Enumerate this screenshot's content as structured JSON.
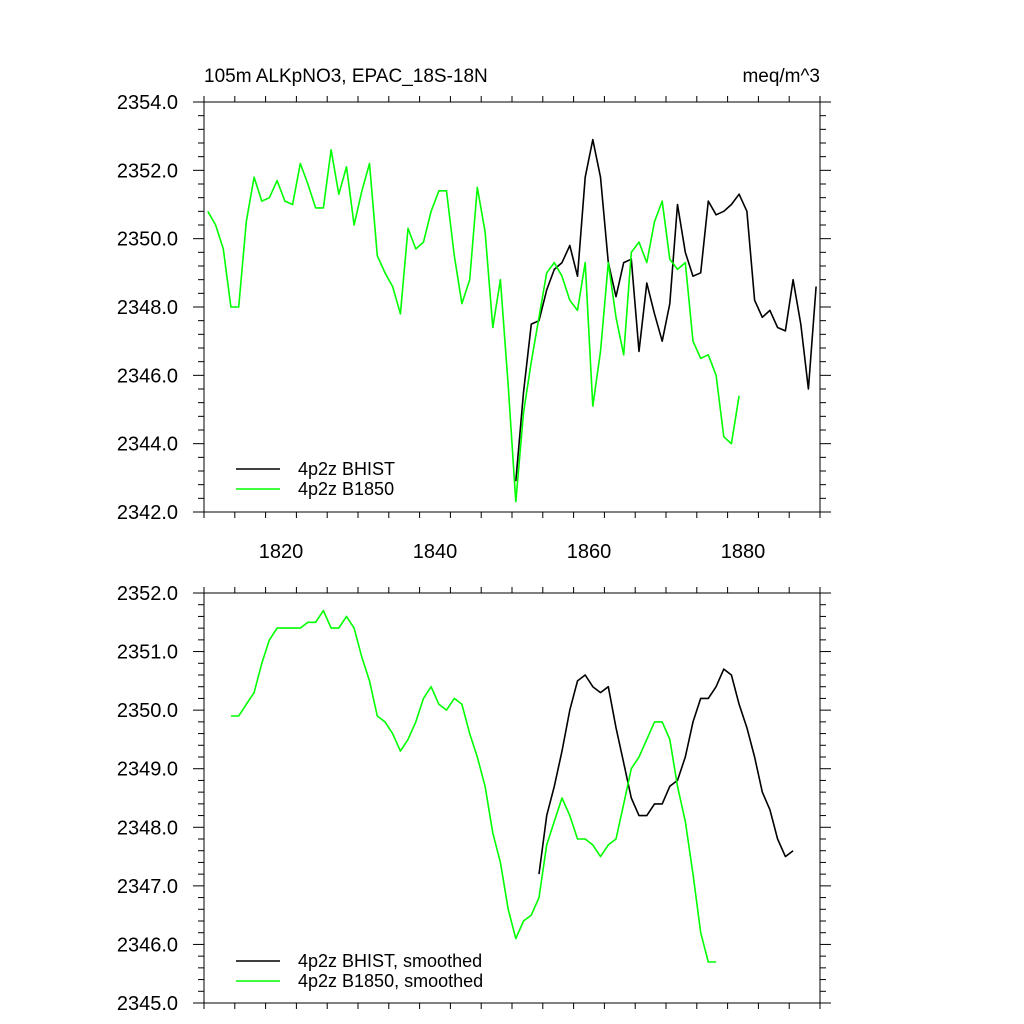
{
  "chart_data": [
    {
      "type": "line",
      "title": "105m ALKpNO3, EPAC_18S-18N",
      "units": "meq/m^3",
      "xlabel": "",
      "ylabel": "",
      "xlim": [
        1810,
        1890
      ],
      "ylim": [
        2342.0,
        2354.0
      ],
      "xticks": [
        1820,
        1840,
        1860,
        1880
      ],
      "xtick_labels": [
        "1820",
        "1840",
        "1860",
        "1880"
      ],
      "yticks": [
        2342,
        2344,
        2346,
        2348,
        2350,
        2352,
        2354
      ],
      "ytick_labels": [
        "2342.0",
        "2344.0",
        "2346.0",
        "2348.0",
        "2350.0",
        "2352.0",
        "2354.0"
      ],
      "grid": false,
      "legend_position": "bottom-left",
      "series": [
        {
          "name": "4p2z BHIST",
          "color": "#000000",
          "x": [
            1850.5,
            1851.5,
            1852.5,
            1853.5,
            1854.5,
            1855.5,
            1856.5,
            1857.5,
            1858.5,
            1859.5,
            1860.5,
            1861.5,
            1862.5,
            1863.5,
            1864.5,
            1865.5,
            1866.5,
            1867.5,
            1868.5,
            1869.5,
            1870.5,
            1871.5,
            1872.5,
            1873.5,
            1874.5,
            1875.5,
            1876.5,
            1877.5,
            1878.5,
            1879.5,
            1880.5,
            1881.5,
            1882.5,
            1883.5,
            1884.5,
            1885.5,
            1886.5,
            1887.5,
            1888.5,
            1889.5
          ],
          "values": [
            2342.9,
            2345.5,
            2347.5,
            2347.6,
            2348.5,
            2349.1,
            2349.3,
            2349.8,
            2348.9,
            2351.8,
            2352.9,
            2351.8,
            2349.3,
            2348.3,
            2349.3,
            2349.4,
            2346.7,
            2348.7,
            2347.8,
            2347.0,
            2348.1,
            2351.0,
            2349.6,
            2348.9,
            2349.0,
            2351.1,
            2350.7,
            2350.8,
            2351.0,
            2351.3,
            2350.8,
            2348.2,
            2347.7,
            2347.9,
            2347.4,
            2347.3,
            2348.8,
            2347.5,
            2345.6,
            2348.6
          ]
        },
        {
          "name": "4p2z B1850",
          "color": "#00ff00",
          "x": [
            1810.5,
            1811.5,
            1812.5,
            1813.5,
            1814.5,
            1815.5,
            1816.5,
            1817.5,
            1818.5,
            1819.5,
            1820.5,
            1821.5,
            1822.5,
            1823.5,
            1824.5,
            1825.5,
            1826.5,
            1827.5,
            1828.5,
            1829.5,
            1830.5,
            1831.5,
            1832.5,
            1833.5,
            1834.5,
            1835.5,
            1836.5,
            1837.5,
            1838.5,
            1839.5,
            1840.5,
            1841.5,
            1842.5,
            1843.5,
            1844.5,
            1845.5,
            1846.5,
            1847.5,
            1848.5,
            1849.5,
            1850.5,
            1851.5,
            1852.5,
            1853.5,
            1854.5,
            1855.5,
            1856.5,
            1857.5,
            1858.5,
            1859.5,
            1860.5,
            1861.5,
            1862.5,
            1863.5,
            1864.5,
            1865.5,
            1866.5,
            1867.5,
            1868.5,
            1869.5,
            1870.5,
            1871.5,
            1872.5,
            1873.5,
            1874.5,
            1875.5,
            1876.5,
            1877.5,
            1878.5,
            1879.5
          ],
          "values": [
            2350.8,
            2350.4,
            2349.7,
            2348.0,
            2348.0,
            2350.5,
            2351.8,
            2351.1,
            2351.2,
            2351.7,
            2351.1,
            2351.0,
            2352.2,
            2351.6,
            2350.9,
            2350.9,
            2352.6,
            2351.3,
            2352.1,
            2350.4,
            2351.4,
            2352.2,
            2349.5,
            2349.0,
            2348.6,
            2347.8,
            2350.3,
            2349.7,
            2349.9,
            2350.8,
            2351.4,
            2351.4,
            2349.5,
            2348.1,
            2348.8,
            2351.5,
            2350.2,
            2347.4,
            2348.8,
            2345.7,
            2342.3,
            2344.9,
            2346.4,
            2347.7,
            2349.0,
            2349.3,
            2348.9,
            2348.2,
            2347.9,
            2349.3,
            2345.1,
            2346.7,
            2349.3,
            2347.7,
            2346.6,
            2349.6,
            2349.9,
            2349.3,
            2350.5,
            2351.1,
            2349.4,
            2349.1,
            2349.3,
            2347.0,
            2346.5,
            2346.6,
            2346.0,
            2344.2,
            2344.0,
            2345.4
          ]
        }
      ]
    },
    {
      "type": "line",
      "title": "",
      "xlabel": "",
      "ylabel": "",
      "xlim": [
        1810,
        1890
      ],
      "ylim": [
        2345.0,
        2352.0
      ],
      "xticks": [
        1820,
        1840,
        1860,
        1880
      ],
      "yticks": [
        2345,
        2346,
        2347,
        2348,
        2349,
        2350,
        2351,
        2352
      ],
      "ytick_labels": [
        "2345.0",
        "2346.0",
        "2347.0",
        "2348.0",
        "2349.0",
        "2350.0",
        "2351.0",
        "2352.0"
      ],
      "grid": false,
      "legend_position": "bottom-left",
      "series": [
        {
          "name": "4p2z BHIST, smoothed",
          "color": "#000000",
          "x": [
            1853.5,
            1854.5,
            1855.5,
            1856.5,
            1857.5,
            1858.5,
            1859.5,
            1860.5,
            1861.5,
            1862.5,
            1863.5,
            1864.5,
            1865.5,
            1866.5,
            1867.5,
            1868.5,
            1869.5,
            1870.5,
            1871.5,
            1872.5,
            1873.5,
            1874.5,
            1875.5,
            1876.5,
            1877.5,
            1878.5,
            1879.5,
            1880.5,
            1881.5,
            1882.5,
            1883.5,
            1884.5,
            1885.5,
            1886.5
          ],
          "values": [
            2347.2,
            2348.2,
            2348.7,
            2349.3,
            2350.0,
            2350.5,
            2350.6,
            2350.4,
            2350.3,
            2350.4,
            2349.7,
            2349.1,
            2348.5,
            2348.2,
            2348.2,
            2348.4,
            2348.4,
            2348.7,
            2348.8,
            2349.2,
            2349.8,
            2350.2,
            2350.2,
            2350.4,
            2350.7,
            2350.6,
            2350.1,
            2349.7,
            2349.2,
            2348.6,
            2348.3,
            2347.8,
            2347.5,
            2347.6
          ]
        },
        {
          "name": "4p2z B1850, smoothed",
          "color": "#00ff00",
          "x": [
            1813.5,
            1814.5,
            1815.5,
            1816.5,
            1817.5,
            1818.5,
            1819.5,
            1820.5,
            1821.5,
            1822.5,
            1823.5,
            1824.5,
            1825.5,
            1826.5,
            1827.5,
            1828.5,
            1829.5,
            1830.5,
            1831.5,
            1832.5,
            1833.5,
            1834.5,
            1835.5,
            1836.5,
            1837.5,
            1838.5,
            1839.5,
            1840.5,
            1841.5,
            1842.5,
            1843.5,
            1844.5,
            1845.5,
            1846.5,
            1847.5,
            1848.5,
            1849.5,
            1850.5,
            1851.5,
            1852.5,
            1853.5,
            1854.5,
            1855.5,
            1856.5,
            1857.5,
            1858.5,
            1859.5,
            1860.5,
            1861.5,
            1862.5,
            1863.5,
            1864.5,
            1865.5,
            1866.5,
            1867.5,
            1868.5,
            1869.5,
            1870.5,
            1871.5,
            1872.5,
            1873.5,
            1874.5,
            1875.5,
            1876.5
          ],
          "values": [
            2349.9,
            2349.9,
            2350.1,
            2350.3,
            2350.8,
            2351.2,
            2351.4,
            2351.4,
            2351.4,
            2351.4,
            2351.5,
            2351.5,
            2351.7,
            2351.4,
            2351.4,
            2351.6,
            2351.4,
            2350.9,
            2350.5,
            2349.9,
            2349.8,
            2349.6,
            2349.3,
            2349.5,
            2349.8,
            2350.2,
            2350.4,
            2350.1,
            2350.0,
            2350.2,
            2350.1,
            2349.6,
            2349.2,
            2348.7,
            2347.9,
            2347.4,
            2346.6,
            2346.1,
            2346.4,
            2346.5,
            2346.8,
            2347.7,
            2348.1,
            2348.5,
            2348.2,
            2347.8,
            2347.8,
            2347.7,
            2347.5,
            2347.7,
            2347.8,
            2348.4,
            2349.0,
            2349.2,
            2349.5,
            2349.8,
            2349.8,
            2349.5,
            2348.7,
            2348.1,
            2347.2,
            2346.2,
            2345.7,
            2345.7
          ]
        }
      ]
    }
  ]
}
